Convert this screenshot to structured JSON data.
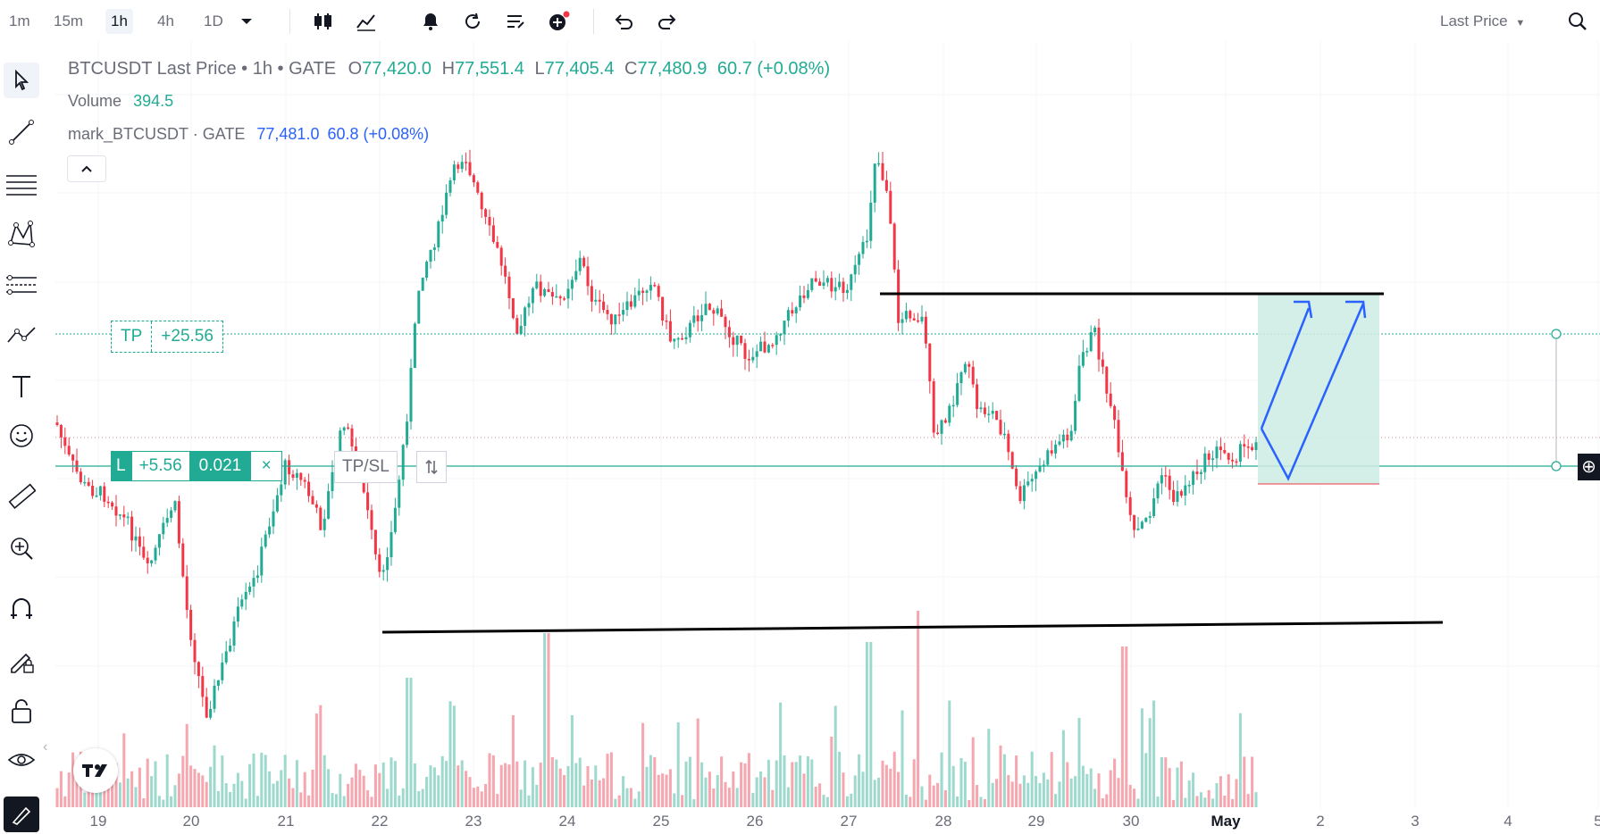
{
  "toolbar": {
    "timeframes": [
      "1m",
      "15m",
      "1h",
      "4h",
      "1D"
    ],
    "active_timeframe": "1h",
    "price_type": "Last Price"
  },
  "legend": {
    "symbol": "BTCUSDT Last Price",
    "interval": "1h",
    "exchange": "GATE",
    "open_label": "O",
    "open": "77,420.0",
    "high_label": "H",
    "high": "77,551.4",
    "low_label": "L",
    "low": "77,405.4",
    "close_label": "C",
    "close": "77,480.9",
    "change": "60.7",
    "change_pct": "(+0.08%)",
    "volume_label": "Volume",
    "volume": "394.5",
    "mark_symbol": "mark_BTCUSDT",
    "mark_exchange": "GATE",
    "mark_price": "77,481.0",
    "mark_change": "60.8",
    "mark_change_pct": "(+0.08%)"
  },
  "tp_label": {
    "tag": "TP",
    "value": "+25.56"
  },
  "position": {
    "side": "L",
    "pnl": "+5.56",
    "qty": "0.021",
    "close": "×",
    "tpsl": "TP/SL"
  },
  "xaxis": {
    "labels": [
      "19",
      "20",
      "21",
      "22",
      "23",
      "24",
      "25",
      "26",
      "27",
      "28",
      "29",
      "30",
      "May",
      "2",
      "3",
      "4",
      "5"
    ]
  },
  "colors": {
    "up": "#22ab94",
    "down": "#f23645",
    "accent": "#2962ff",
    "target_zone": "#cdebe4",
    "drawing": "#000000"
  },
  "icons": [
    "candles-icon",
    "indicators-icon",
    "alert-icon",
    "replay-icon",
    "strategy-icon",
    "add-icon",
    "undo-icon",
    "redo-icon",
    "search-icon",
    "cursor-icon",
    "trendline-icon",
    "fib-icon",
    "pattern-icon",
    "forecast-icon",
    "path-icon",
    "text-icon",
    "emoji-icon",
    "ruler-icon",
    "zoom-icon",
    "magnet-icon",
    "lock-drawing-icon",
    "lock-icon",
    "eye-icon",
    "pencil-icon"
  ]
}
